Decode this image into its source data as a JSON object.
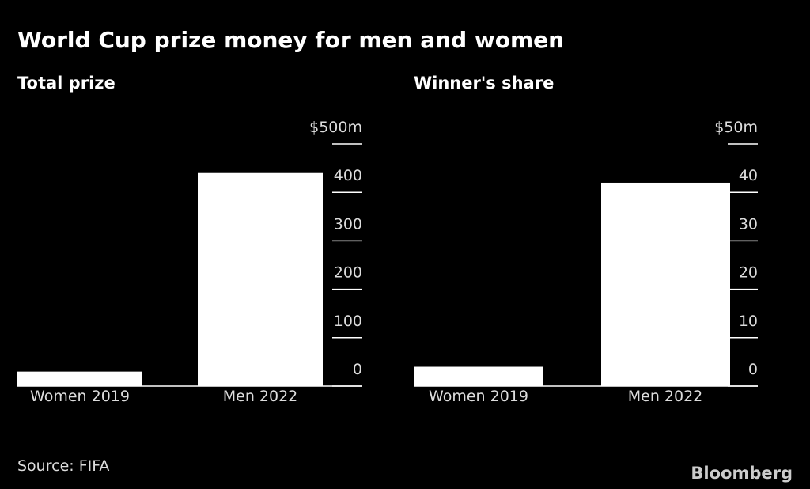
{
  "title": "World Cup prize money for men and women",
  "source": "Source: FIFA",
  "logo": "Bloomberg",
  "chart_data": [
    {
      "type": "bar",
      "title": "Total prize",
      "categories": [
        "Women 2019",
        "Men 2022"
      ],
      "values": [
        30,
        440
      ],
      "color": "#ffffff",
      "ylim": [
        0,
        500
      ],
      "yticks": [
        0,
        100,
        200,
        300,
        400,
        {
          "value": 500,
          "label": "$500m"
        }
      ]
    },
    {
      "type": "bar",
      "title": "Winner's share",
      "categories": [
        "Women 2019",
        "Men 2022"
      ],
      "values": [
        4,
        42
      ],
      "color": "#ffffff",
      "ylim": [
        0,
        50
      ],
      "yticks": [
        0,
        10,
        20,
        30,
        40,
        {
          "value": 50,
          "label": "$50m"
        }
      ]
    }
  ]
}
